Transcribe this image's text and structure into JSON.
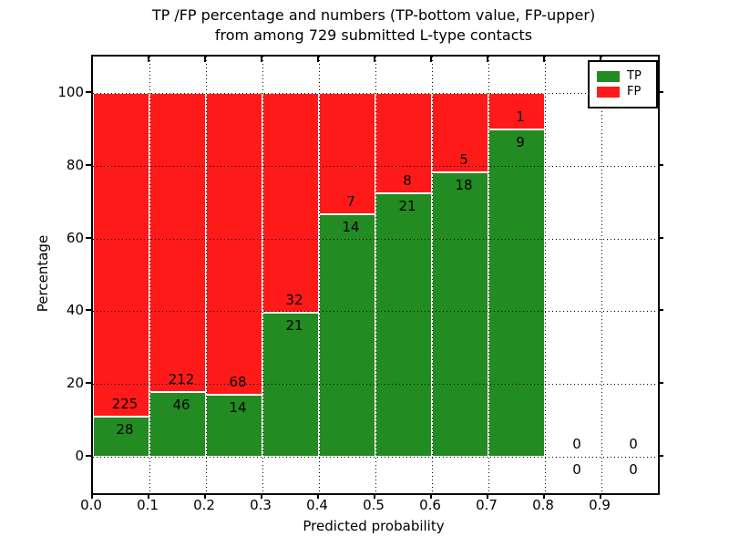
{
  "title": {
    "line1": "TP /FP percentage and numbers (TP-bottom value, FP-upper)",
    "line2": "from among 729 submitted L-type contacts"
  },
  "axes": {
    "xlabel": "Predicted probability",
    "ylabel": "Percentage"
  },
  "legend": {
    "items": [
      {
        "label": "TP",
        "color": "#228b22"
      },
      {
        "label": "FP",
        "color": "#ff1a1a"
      }
    ]
  },
  "chart_data": {
    "type": "bar",
    "stacked": true,
    "normalized": "each bin scaled to 100%; bar heights are TP/(TP+FP) percent",
    "title": "TP /FP percentage and numbers (TP-bottom value, FP-upper) from among 729 submitted L-type contacts",
    "xlabel": "Predicted probability",
    "ylabel": "Percentage",
    "total_contacts": 729,
    "bin_width": 0.1,
    "bin_starts": [
      0.0,
      0.1,
      0.2,
      0.3,
      0.4,
      0.5,
      0.6,
      0.7,
      0.8,
      0.9
    ],
    "series": [
      {
        "name": "TP",
        "color": "#228b22",
        "counts": [
          28,
          46,
          14,
          21,
          14,
          21,
          18,
          9,
          0,
          0
        ]
      },
      {
        "name": "FP",
        "color": "#ff1a1a",
        "counts": [
          225,
          212,
          68,
          32,
          7,
          8,
          5,
          1,
          0,
          0
        ]
      }
    ],
    "tp_percent_by_bin": [
      11.07,
      17.83,
      17.07,
      39.62,
      66.67,
      72.41,
      78.26,
      90.0,
      0,
      0
    ],
    "xlim": [
      0.0,
      1.0
    ],
    "ylim": [
      -10,
      110
    ],
    "xtick_labels": [
      "0.0",
      "0.1",
      "0.2",
      "0.3",
      "0.4",
      "0.5",
      "0.6",
      "0.7",
      "0.8",
      "0.9"
    ],
    "ytick_values": [
      0,
      20,
      40,
      60,
      80,
      100
    ],
    "grid": "dotted, drawn above bars",
    "legend_position": "upper right"
  }
}
